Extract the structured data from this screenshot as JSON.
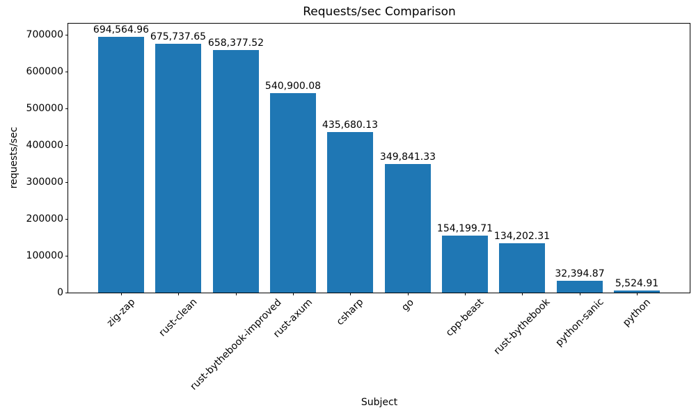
{
  "chart_data": {
    "type": "bar",
    "title": "Requests/sec Comparison",
    "xlabel": "Subject",
    "ylabel": "requests/sec",
    "categories": [
      "zig-zap",
      "rust-clean",
      "rust-bythebook-improved",
      "rust-axum",
      "csharp",
      "go",
      "cpp-beast",
      "rust-bythebook",
      "python-sanic",
      "python"
    ],
    "values": [
      694564.96,
      675737.65,
      658377.52,
      540900.08,
      435680.13,
      349841.33,
      154199.71,
      134202.31,
      32394.87,
      5524.91
    ],
    "value_labels": [
      "694,564.96",
      "675,737.65",
      "658,377.52",
      "540,900.08",
      "435,680.13",
      "349,841.33",
      "154,199.71",
      "134,202.31",
      "32,394.87",
      "5,524.91"
    ],
    "ylim": [
      0,
      730000
    ],
    "yticks": [
      0,
      100000,
      200000,
      300000,
      400000,
      500000,
      600000,
      700000
    ],
    "ytick_labels": [
      "0",
      "100000",
      "200000",
      "300000",
      "400000",
      "500000",
      "600000",
      "700000"
    ],
    "xtick_rotation_deg": 45,
    "grid": false,
    "legend": "none",
    "bar_color": "#1f77b4",
    "background_color": "#ffffff",
    "text_color": "#000000"
  }
}
